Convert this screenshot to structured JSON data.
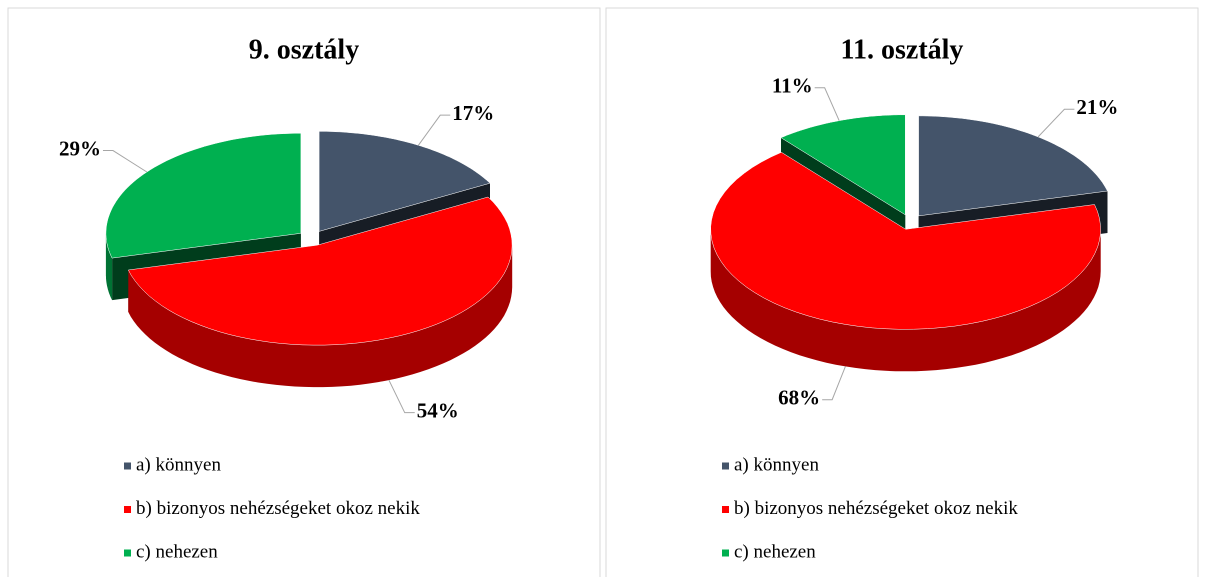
{
  "chart_data": [
    {
      "type": "pie",
      "title": "9. osztály",
      "categories": [
        "a) könnyen",
        "b) bizonyos nehézségeket okoz nekik",
        "c) nehezen"
      ],
      "values": [
        17,
        54,
        29
      ],
      "value_labels": [
        "17%",
        "54%",
        "29%"
      ],
      "colors": [
        "#44546a",
        "#ff0000",
        "#00b050"
      ]
    },
    {
      "type": "pie",
      "title": "11. osztály",
      "categories": [
        "a) könnyen",
        "b) bizonyos nehézségeket okoz nekik",
        "c) nehezen"
      ],
      "values": [
        21,
        68,
        11
      ],
      "value_labels": [
        "21%",
        "68%",
        "11%"
      ],
      "colors": [
        "#44546a",
        "#ff0000",
        "#00b050"
      ]
    }
  ]
}
